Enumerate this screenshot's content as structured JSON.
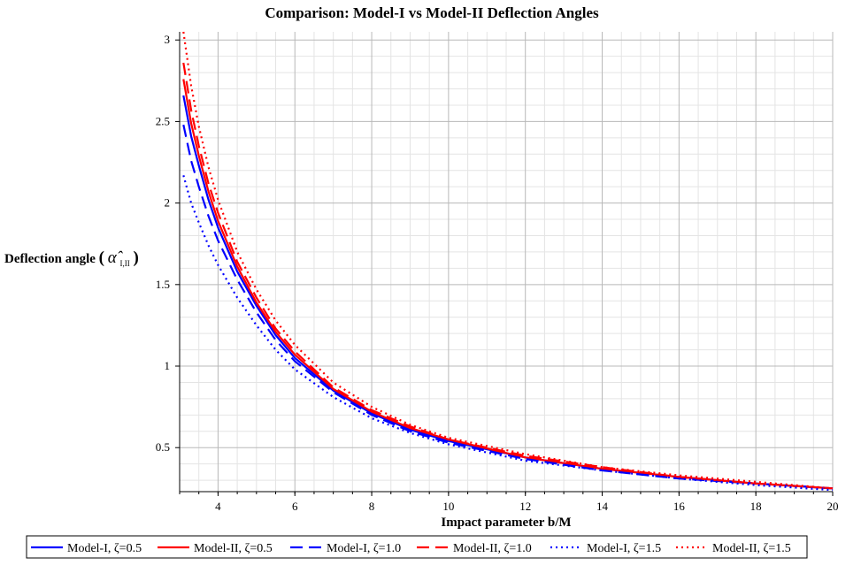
{
  "chart_data": {
    "type": "line",
    "title": "Comparison: Model-I vs Model-II Deflection Angles",
    "xlabel": "Impact parameter b/M",
    "ylabel": {
      "prefix": "Deflection angle",
      "symbol": "α̂",
      "subscript": "I,II",
      "open_paren": "(",
      "close_paren": ")"
    },
    "xlim": [
      3,
      20
    ],
    "ylim": [
      0.23,
      3.05
    ],
    "xticks": [
      "4",
      "6",
      "8",
      "10",
      "12",
      "14",
      "16",
      "18",
      "20"
    ],
    "yticks": [
      "0.5",
      "1",
      "1.5",
      "2",
      "2.5",
      "3"
    ],
    "grid": true,
    "legend_position": "bottom",
    "x": [
      3.1,
      3.3,
      3.5,
      3.75,
      4,
      4.5,
      5,
      5.5,
      6,
      7,
      8,
      9,
      10,
      12,
      14,
      16,
      18,
      20
    ],
    "series": [
      {
        "name": "Model-I, ζ=0.5",
        "color": "#0000ff",
        "style": "solid",
        "values": [
          2.66,
          2.41,
          2.23,
          2.02,
          1.85,
          1.58,
          1.37,
          1.19,
          1.05,
          0.85,
          0.71,
          0.61,
          0.54,
          0.44,
          0.37,
          0.32,
          0.28,
          0.25
        ]
      },
      {
        "name": "Model-II, ζ=0.5",
        "color": "#ff0000",
        "style": "solid",
        "values": [
          2.76,
          2.49,
          2.29,
          2.07,
          1.89,
          1.61,
          1.39,
          1.21,
          1.07,
          0.86,
          0.72,
          0.62,
          0.55,
          0.44,
          0.37,
          0.32,
          0.28,
          0.25
        ]
      },
      {
        "name": "Model-I, ζ=1.0",
        "color": "#0000ff",
        "style": "dashed",
        "values": [
          2.48,
          2.26,
          2.1,
          1.92,
          1.77,
          1.53,
          1.33,
          1.16,
          1.03,
          0.84,
          0.7,
          0.6,
          0.53,
          0.43,
          0.36,
          0.31,
          0.28,
          0.25
        ]
      },
      {
        "name": "Model-II, ζ=1.0",
        "color": "#ff0000",
        "style": "dashed",
        "values": [
          2.86,
          2.57,
          2.35,
          2.12,
          1.94,
          1.64,
          1.42,
          1.23,
          1.09,
          0.87,
          0.73,
          0.63,
          0.55,
          0.45,
          0.38,
          0.32,
          0.28,
          0.25
        ]
      },
      {
        "name": "Model-I, ζ=1.5",
        "color": "#0000ff",
        "style": "dotted",
        "values": [
          2.17,
          2.0,
          1.88,
          1.74,
          1.62,
          1.42,
          1.25,
          1.1,
          0.98,
          0.81,
          0.68,
          0.59,
          0.52,
          0.42,
          0.36,
          0.31,
          0.27,
          0.24
        ]
      },
      {
        "name": "Model-II, ζ=1.5",
        "color": "#ff0000",
        "style": "dotted",
        "values": [
          3.05,
          2.72,
          2.47,
          2.22,
          2.02,
          1.7,
          1.47,
          1.28,
          1.13,
          0.9,
          0.75,
          0.64,
          0.56,
          0.46,
          0.38,
          0.33,
          0.29,
          0.25
        ]
      }
    ]
  }
}
